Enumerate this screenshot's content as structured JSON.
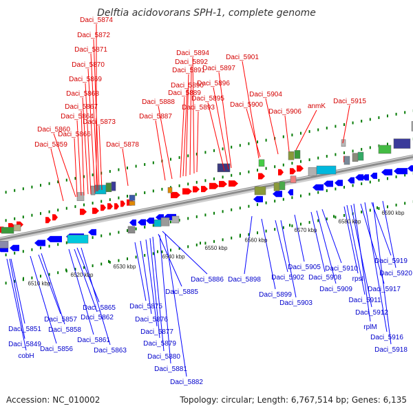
{
  "title": "Delftia acidovorans SPH-1, complete genome",
  "footer": {
    "accession": "Accession: NC_010002",
    "summary": "Topology: circular; Length: 6,767,514 bp; Genes: 6,135"
  },
  "colors": {
    "forward_gene": "#ff0000",
    "reverse_gene": "#0000ff",
    "forward_label": "#d40000",
    "reverse_label": "#0000cc",
    "backbone": "#8c8c8c",
    "tick": "#007a00"
  },
  "axis": {
    "tick_labels": [
      "6510 kbp",
      "6520 kbp",
      "6530 kbp",
      "6540 kbp",
      "6550 kbp",
      "6560 kbp",
      "6570 kbp",
      "6580 kbp",
      "6590 kbp"
    ]
  },
  "forward_labels": [
    "Daci_5874",
    "Daci_5872",
    "Daci_5871",
    "Daci_5870",
    "Daci_5869",
    "Daci_5868",
    "Daci_5867",
    "Daci_5864",
    "Daci_5873",
    "Daci_5860",
    "Daci_5866",
    "Daci_5859",
    "Daci_5878",
    "Daci_5894",
    "Daci_5892",
    "Daci_5891",
    "Daci_5890",
    "Daci_5889",
    "Daci_5888",
    "Daci_5887",
    "Daci_5897",
    "Daci_5896",
    "Daci_5895",
    "Daci_5893",
    "Daci_5901",
    "Daci_5904",
    "Daci_5900",
    "Daci_5906",
    "anmK",
    "Daci_5915"
  ],
  "reverse_labels": [
    "Daci_5886",
    "Daci_5885",
    "Daci_5898",
    "Daci_5899",
    "Daci_5902",
    "Daci_5903",
    "Daci_5905",
    "Daci_5908",
    "Daci_5909",
    "Daci_5910",
    "rpsI",
    "Daci_5911",
    "Daci_5912",
    "rplM",
    "Daci_5917",
    "Daci_5919",
    "Daci_5920",
    "Daci_5916",
    "Daci_5918",
    "Daci_5865",
    "Daci_5862",
    "Daci_5875",
    "Daci_5876",
    "Daci_5877",
    "Daci_5879",
    "Daci_5880",
    "Daci_5881",
    "Daci_5882",
    "Daci_5857",
    "Daci_5858",
    "Daci_5861",
    "Daci_5863",
    "Daci_5856",
    "Daci_5851",
    "Daci_5849",
    "cobH"
  ]
}
